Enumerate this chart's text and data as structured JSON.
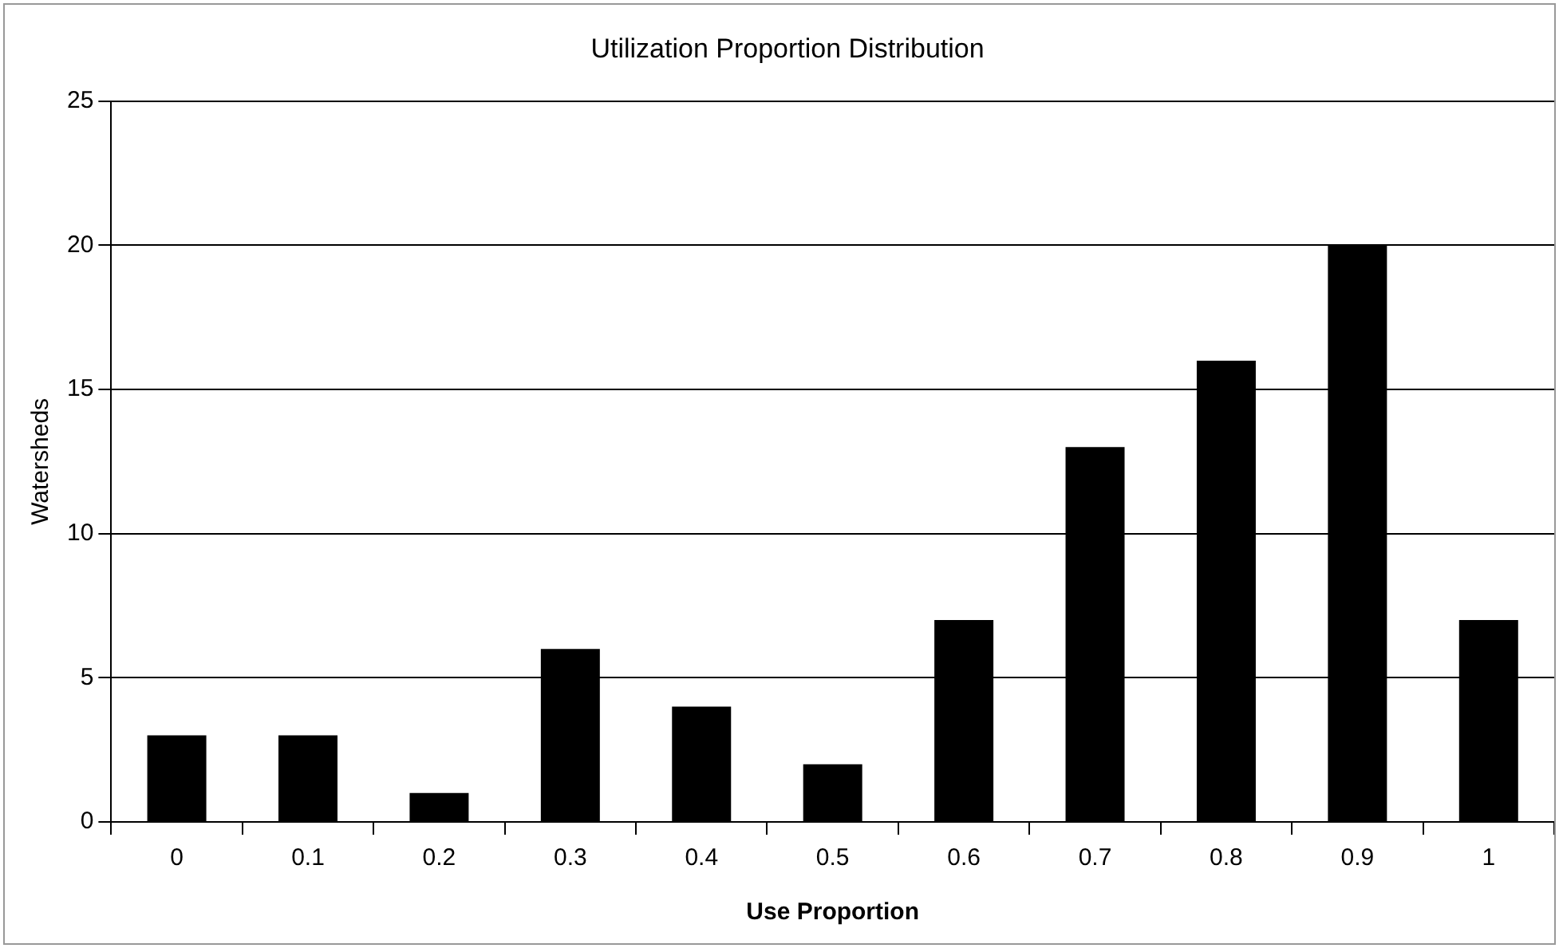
{
  "chart_data": {
    "type": "bar",
    "title": "Utilization Proportion Distribution",
    "xlabel": "Use Proportion",
    "ylabel": "Watersheds",
    "categories": [
      "0",
      "0.1",
      "0.2",
      "0.3",
      "0.4",
      "0.5",
      "0.6",
      "0.7",
      "0.8",
      "0.9",
      "1"
    ],
    "values": [
      3,
      3,
      1,
      6,
      4,
      2,
      7,
      13,
      16,
      20,
      7
    ],
    "color": "#000000",
    "ylim": [
      0,
      25
    ],
    "yticks": [
      0,
      5,
      10,
      15,
      20,
      25
    ],
    "grid": "y",
    "legend": false
  }
}
